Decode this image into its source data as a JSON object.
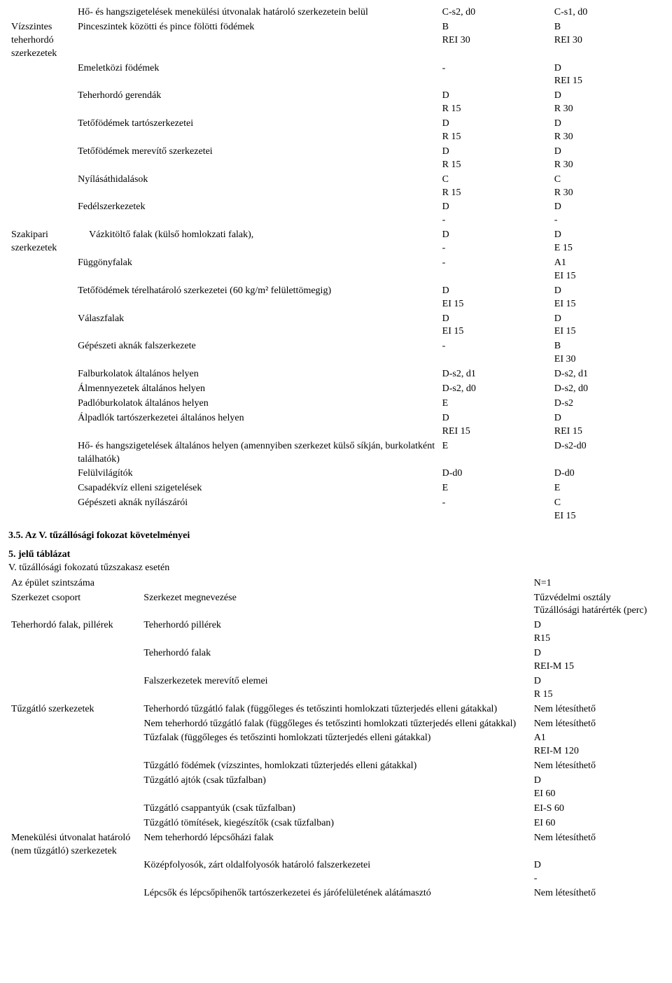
{
  "table1": {
    "col1_header": "",
    "col2_header": "",
    "val_col1": "C-s2, d0",
    "val_col2": "C-s1, d0",
    "groups": {
      "g1": "Vízszintes teherhordó szerkezetek",
      "g2": "Szakipari szerkezetek"
    },
    "rows": [
      {
        "g": "",
        "label": "Hő- és hangszigetelések menekülési útvonalak határoló szerkezetein belül",
        "c1": "C-s2, d0",
        "c2": "C-s1, d0"
      },
      {
        "g": "g1",
        "label": "Pinceszintek közötti és pince fölötti födémek",
        "c1": "B\nREI 30",
        "c2": "B\nREI 30"
      },
      {
        "g": "",
        "label": "Emeletközi födémek",
        "c1": "-",
        "c2": "D\nREI 15"
      },
      {
        "g": "",
        "label": "Teherhordó gerendák",
        "c1": "D\nR 15",
        "c2": "D\nR 30"
      },
      {
        "g": "",
        "label": "Tetőfödémek tartószerkezetei",
        "c1": "D\nR 15",
        "c2": "D\nR 30"
      },
      {
        "g": "",
        "label": "Tetőfödémek merevítő szerkezetei",
        "c1": "D\nR 15",
        "c2": "D\nR 30"
      },
      {
        "g": "",
        "label": "Nyílásáthidalások",
        "c1": "C\nR 15",
        "c2": "C\nR 30"
      },
      {
        "g": "",
        "label": "Fedélszerkezetek",
        "c1": "D\n-",
        "c2": "D\n-"
      },
      {
        "g": "g2",
        "label": "Vázkitöltő falak (külső homlokzati falak),",
        "indent": true,
        "c1": "D\n-",
        "c2": "D\nE 15"
      },
      {
        "g": "",
        "label": "Függönyfalak",
        "c1": "-",
        "c2": "A1\nEI 15"
      },
      {
        "g": "",
        "label": "Tetőfödémek térelhatároló szerkezetei (60 kg/m² felülettömegig)",
        "c1": "D\nEI 15",
        "c2": "D\nEI 15"
      },
      {
        "g": "",
        "label": "Válaszfalak",
        "c1": "D\nEI 15",
        "c2": "D\nEI 15"
      },
      {
        "g": "",
        "label": "Gépészeti aknák falszerkezete",
        "c1": "-",
        "c2": "B\nEI 30"
      },
      {
        "g": "",
        "label": "Falburkolatok általános helyen",
        "c1": "D-s2, d1",
        "c2": "D-s2, d1"
      },
      {
        "g": "",
        "label": "Álmennyezetek általános helyen",
        "c1": "D-s2, d0",
        "c2": "D-s2, d0"
      },
      {
        "g": "",
        "label": "Padlóburkolatok általános helyen",
        "c1": "E",
        "c2": "D-s2"
      },
      {
        "g": "",
        "label": "Álpadlók tartószerkezetei általános helyen",
        "c1": "D\nREI 15",
        "c2": "D\nREI 15"
      },
      {
        "g": "",
        "label": "Hő- és hangszigetelések általános helyen (amennyiben szerkezet külső síkján, burkolatként találhatók)",
        "c1": "E",
        "c2": "D-s2-d0"
      },
      {
        "g": "",
        "label": "Felülvilágítók",
        "c1": "D-d0",
        "c2": "D-d0"
      },
      {
        "g": "",
        "label": "Csapadékvíz elleni szigetelések",
        "c1": "E",
        "c2": "E"
      },
      {
        "g": "",
        "label": "Gépészeti aknák nyílászárói",
        "c1": "-",
        "c2": "C\nEI 15"
      }
    ]
  },
  "mid": {
    "h1": "3.5. Az V. tűzállósági fokozat követelményei",
    "h2": "5. jelű táblázat",
    "h3": "V. tűzállósági fokozatú tűzszakasz esetén",
    "line_a_label": "Az épület szintszáma",
    "line_a_val": "N=1",
    "line_b_label": "Szerkezet csoport",
    "line_b_mid": "Szerkezet megnevezése",
    "line_b_val": "Tűzvédelmi osztály\nTűzállósági határérték (perc)"
  },
  "table2": {
    "groups": {
      "g1": "Teherhordó falak, pillérek",
      "g2": "Tűzgátló szerkezetek",
      "g3": "Menekülési útvonalat határoló\n(nem tűzgátló) szerkezetek"
    },
    "rows": [
      {
        "g": "g1",
        "label": "Teherhordó pillérek",
        "v": "D\nR15"
      },
      {
        "g": "",
        "label": "Teherhordó falak",
        "v": "D\nREI-M 15"
      },
      {
        "g": "",
        "label": "Falszerkezetek merevítő elemei",
        "v": "D\nR 15"
      },
      {
        "g": "g2",
        "label": "Teherhordó tűzgátló falak (függőleges és tetőszinti homlokzati tűzterjedés elleni gátakkal)",
        "v": "Nem létesíthető"
      },
      {
        "g": "",
        "label": "Nem teherhordó tűzgátló falak (függőleges és tetőszinti homlokzati tűzterjedés elleni gátakkal)",
        "v": "Nem létesíthető"
      },
      {
        "g": "",
        "label": "Tűzfalak (függőleges és tetőszinti homlokzati tűzterjedés elleni gátakkal)",
        "v": "A1\nREI-M 120"
      },
      {
        "g": "",
        "label": "Tűzgátló födémek (vízszintes, homlokzati tűzterjedés elleni gátakkal)",
        "v": "Nem létesíthető"
      },
      {
        "g": "",
        "label": "Tűzgátló ajtók (csak tűzfalban)",
        "v": "D\nEI 60"
      },
      {
        "g": "",
        "label": "Tűzgátló csappantyúk (csak tűzfalban)",
        "v": "EI-S 60"
      },
      {
        "g": "",
        "label": "Tűzgátló tömítések, kiegészítők (csak tűzfalban)",
        "v": "EI 60"
      },
      {
        "g": "g3",
        "label": "Nem teherhordó lépcsőházi falak",
        "v": "Nem létesíthető"
      },
      {
        "g": "",
        "label": "Középfolyosók, zárt oldalfolyosók határoló falszerkezetei",
        "v": "D\n-"
      },
      {
        "g": "",
        "label": "Lépcsők és lépcsőpihenők tartószerkezetei és járófelületének alátámasztó",
        "v": "Nem létesíthető"
      }
    ]
  }
}
